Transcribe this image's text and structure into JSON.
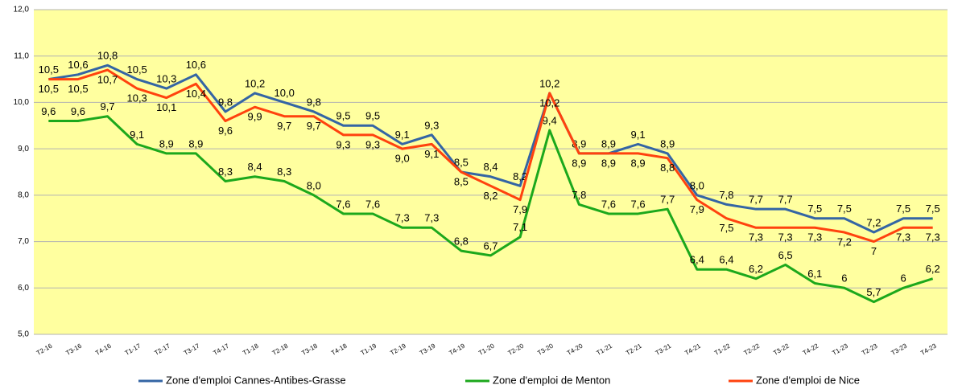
{
  "chart_data": {
    "type": "line",
    "categories": [
      "T2-16",
      "T3-16",
      "T4-16",
      "T1-17",
      "T2-17",
      "T3-17",
      "T4-17",
      "T1-18",
      "T2-18",
      "T3-18",
      "T4-18",
      "T1-19",
      "T2-19",
      "T3-19",
      "T4-19",
      "T1-20",
      "T2-20",
      "T3-20",
      "T4-20",
      "T1-21",
      "T2-21",
      "T3-21",
      "T4-21",
      "T1-22",
      "T2-22",
      "T3-22",
      "T4-22",
      "T1-23",
      "T2-23",
      "T3-23",
      "T4-23"
    ],
    "series": [
      {
        "name": "Zone d'emploi Cannes-Antibes-Grasse",
        "color": "#3465a4",
        "values": [
          10.5,
          10.6,
          10.8,
          10.5,
          10.3,
          10.6,
          9.8,
          10.2,
          10.0,
          9.8,
          9.5,
          9.5,
          9.1,
          9.3,
          8.5,
          8.4,
          8.2,
          10.2,
          8.9,
          8.9,
          9.1,
          8.9,
          8.0,
          7.8,
          7.7,
          7.7,
          7.5,
          7.5,
          7.2,
          7.5,
          7.5
        ],
        "value_labels": [
          "10,5",
          "10,6",
          "10,8",
          "10,5",
          "10,3",
          "10,6",
          "9,8",
          "10,2",
          "10,0",
          "9,8",
          "9,5",
          "9,5",
          "9,1",
          "9,3",
          "8,5",
          "8,4",
          "8,2",
          "10,2",
          "8,9",
          "8,9",
          "9,1",
          "8,9",
          "8,0",
          "7,8",
          "7,7",
          "7,7",
          "7,5",
          "7,5",
          "7,2",
          "7,5",
          "7,5"
        ]
      },
      {
        "name": "Zone d'emploi de Menton",
        "color": "#1ca81c",
        "values": [
          9.6,
          9.6,
          9.7,
          9.1,
          8.9,
          8.9,
          8.3,
          8.4,
          8.3,
          8.0,
          7.6,
          7.6,
          7.3,
          7.3,
          6.8,
          6.7,
          7.1,
          9.4,
          7.8,
          7.6,
          7.6,
          7.7,
          6.4,
          6.4,
          6.2,
          6.5,
          6.1,
          6,
          5.7,
          6,
          6.2
        ],
        "value_labels": [
          "9,6",
          "9,6",
          "9,7",
          "9,1",
          "8,9",
          "8,9",
          "8,3",
          "8,4",
          "8,3",
          "8,0",
          "7,6",
          "7,6",
          "7,3",
          "7,3",
          "6,8",
          "6,7",
          "7,1",
          "9,4",
          "7,8",
          "7,6",
          "7,6",
          "7,7",
          "6,4",
          "6,4",
          "6,2",
          "6,5",
          "6,1",
          "6",
          "5,7",
          "6",
          "6,2"
        ]
      },
      {
        "name": "Zone d'emploi de Nice",
        "color": "#ff420e",
        "values": [
          10.5,
          10.5,
          10.7,
          10.3,
          10.1,
          10.4,
          9.6,
          9.9,
          9.7,
          9.7,
          9.3,
          9.3,
          9.0,
          9.1,
          8.5,
          8.2,
          7.9,
          10.2,
          8.9,
          8.9,
          8.9,
          8.8,
          7.9,
          7.5,
          7.3,
          7.3,
          7.3,
          7.2,
          7,
          7.3,
          7.3
        ],
        "value_labels": [
          "10,5",
          "10,5",
          "10,7",
          "10,3",
          "10,1",
          "10,4",
          "9,6",
          "9,9",
          "9,7",
          "9,7",
          "9,3",
          "9,3",
          "9,0",
          "9,1",
          "8,5",
          "8,2",
          "7,9",
          "10,2",
          "8,9",
          "8,9",
          "8,9",
          "8,8",
          "7,9",
          "7,5",
          "7,3",
          "7,3",
          "7,3",
          "7,2",
          "7",
          "7,3",
          "7,3"
        ]
      }
    ],
    "ylim": [
      5,
      12
    ],
    "yticks": [
      {
        "value": 5,
        "label": "5,0"
      },
      {
        "value": 6,
        "label": "6,0"
      },
      {
        "value": 7,
        "label": "7,0"
      },
      {
        "value": 8,
        "label": "8,0"
      },
      {
        "value": 9,
        "label": "9,0"
      },
      {
        "value": 10,
        "label": "10,0"
      },
      {
        "value": 11,
        "label": "11,0"
      },
      {
        "value": 12,
        "label": "12,0"
      }
    ],
    "grid": true,
    "legend": "bottom"
  }
}
